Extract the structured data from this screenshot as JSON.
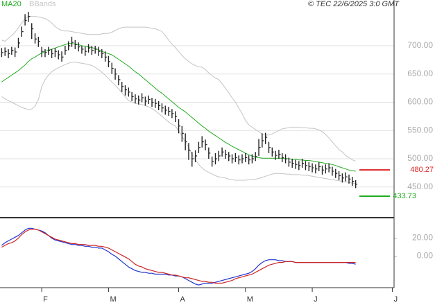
{
  "chart_data": {
    "type": "ohlc",
    "credit": "© TEC 22/6/2025 3:0 GMT",
    "categories": [
      null,
      null,
      null,
      null,
      null,
      null,
      null,
      null,
      null,
      null,
      null,
      null,
      "F",
      null,
      null,
      null,
      null,
      null,
      null,
      null,
      null,
      null,
      null,
      null,
      null,
      null,
      null,
      null,
      null,
      null,
      null,
      null,
      "M",
      null,
      null,
      null,
      null,
      null,
      null,
      null,
      null,
      null,
      null,
      null,
      null,
      null,
      null,
      null,
      null,
      null,
      null,
      null,
      null,
      "A",
      null,
      null,
      null,
      null,
      null,
      null,
      null,
      null,
      null,
      null,
      null,
      null,
      null,
      null,
      null,
      null,
      null,
      null,
      null,
      "M",
      null,
      null,
      null,
      null,
      null,
      null,
      null,
      null,
      null,
      null,
      null,
      null,
      null,
      null,
      null,
      null,
      null,
      null,
      null,
      "J",
      null,
      null,
      null,
      null,
      null,
      null,
      null,
      null,
      null,
      null,
      null,
      null,
      null,
      null,
      null,
      null,
      null,
      null,
      null,
      null,
      null,
      null,
      null,
      "J"
    ],
    "ylim": [
      397,
      781
    ],
    "yticks": [
      {
        "value": 450,
        "label": "450.00"
      },
      {
        "value": 500,
        "label": "500.00"
      },
      {
        "value": 550,
        "label": "550.00"
      },
      {
        "value": 600,
        "label": "600.00"
      },
      {
        "value": 650,
        "label": "650.00"
      },
      {
        "value": 700,
        "label": "700.00"
      }
    ],
    "grid": true,
    "bars": {
      "color": "#222222",
      "high": [
        696,
        697,
        694,
        698,
        697,
        714,
        734,
        756,
        760,
        740,
        722,
        716,
        698,
        694,
        698,
        694,
        696,
        692,
        690,
        700,
        708,
        716,
        710,
        706,
        700,
        698,
        703,
        700,
        700,
        698,
        694,
        690,
        682,
        670,
        660,
        648,
        636,
        630,
        626,
        618,
        614,
        612,
        616,
        610,
        612,
        608,
        606,
        602,
        598,
        594,
        592,
        588,
        584,
        570,
        558,
        545,
        528,
        512,
        515,
        530,
        540,
        534,
        520,
        504,
        510,
        514,
        520,
        516,
        512,
        508,
        510,
        506,
        508,
        510,
        506,
        508,
        512,
        535,
        545,
        546,
        530,
        520,
        514,
        516,
        510,
        508,
        502,
        500,
        498,
        496,
        500,
        496,
        494,
        492,
        490,
        494,
        488,
        490,
        492,
        486,
        482,
        478,
        474,
        476,
        472,
        468,
        462,
        null,
        null,
        null,
        null,
        null,
        null,
        null,
        null,
        null,
        null,
        null
      ],
      "low": [
        680,
        682,
        678,
        684,
        680,
        696,
        716,
        736,
        742,
        712,
        704,
        698,
        680,
        680,
        684,
        678,
        680,
        676,
        672,
        684,
        692,
        698,
        694,
        690,
        686,
        682,
        688,
        684,
        686,
        682,
        678,
        672,
        662,
        650,
        640,
        630,
        618,
        612,
        610,
        602,
        598,
        596,
        600,
        594,
        597,
        592,
        590,
        586,
        582,
        578,
        576,
        572,
        565,
        545,
        530,
        515,
        498,
        486,
        494,
        510,
        520,
        515,
        500,
        486,
        490,
        496,
        504,
        500,
        496,
        492,
        494,
        490,
        492,
        494,
        490,
        492,
        496,
        505,
        520,
        526,
        510,
        504,
        498,
        500,
        494,
        492,
        486,
        484,
        482,
        480,
        484,
        480,
        478,
        476,
        474,
        478,
        472,
        474,
        476,
        470,
        466,
        462,
        458,
        460,
        456,
        452,
        448,
        null,
        null,
        null,
        null,
        null,
        null,
        null,
        null,
        null,
        null,
        null
      ],
      "close": [
        688,
        690,
        686,
        692,
        689,
        705,
        725,
        745,
        752,
        730,
        712,
        708,
        690,
        688,
        692,
        686,
        690,
        684,
        680,
        692,
        700,
        706,
        702,
        698,
        694,
        690,
        696,
        692,
        694,
        690,
        686,
        680,
        672,
        660,
        650,
        640,
        628,
        622,
        618,
        610,
        606,
        604,
        608,
        602,
        605,
        600,
        598,
        594,
        590,
        586,
        584,
        580,
        575,
        558,
        545,
        530,
        515,
        500,
        505,
        520,
        530,
        525,
        510,
        495,
        500,
        505,
        512,
        508,
        505,
        500,
        502,
        498,
        500,
        502,
        498,
        500,
        504,
        520,
        532,
        538,
        520,
        512,
        506,
        508,
        502,
        500,
        494,
        492,
        490,
        488,
        492,
        488,
        486,
        484,
        482,
        486,
        480,
        482,
        484,
        478,
        474,
        470,
        466,
        468,
        464,
        460,
        455,
        null,
        null,
        null,
        null,
        null,
        null,
        null,
        null,
        null,
        null,
        null
      ]
    },
    "ma": {
      "name": "MA20",
      "color": "#22aa22",
      "values": [
        636,
        640,
        644,
        648,
        652,
        656,
        661,
        666,
        672,
        677,
        680,
        684,
        687,
        690,
        692,
        694,
        696,
        698,
        700,
        702,
        704,
        704,
        703,
        702,
        700,
        699,
        698,
        697,
        695,
        693,
        690,
        688,
        686,
        684,
        680,
        676,
        672,
        668,
        664,
        659,
        654,
        650,
        645,
        640,
        635,
        630,
        625,
        620,
        616,
        611,
        606,
        601,
        596,
        591,
        587,
        583,
        578,
        573,
        568,
        563,
        558,
        554,
        549,
        545,
        541,
        537,
        533,
        529,
        526,
        522,
        519,
        516,
        513,
        510,
        507,
        505,
        503,
        502,
        501,
        501,
        501,
        501,
        501,
        501,
        501,
        500,
        500,
        499,
        499,
        498,
        498,
        497,
        497,
        496,
        495,
        494,
        493,
        492,
        491,
        490,
        488,
        486,
        484,
        482,
        480,
        479,
        478,
        null,
        null,
        null,
        null,
        null,
        null,
        null,
        null,
        null,
        null,
        null
      ]
    },
    "bands": {
      "name": "BBands",
      "color": "#c4c4c4",
      "upper": [
        710,
        708,
        713,
        718,
        724,
        732,
        740,
        748,
        752,
        752,
        752,
        751,
        750,
        748,
        745,
        740,
        734,
        730,
        727,
        726,
        726,
        725,
        724,
        723,
        722,
        721,
        720,
        720,
        720,
        720,
        721,
        722,
        722,
        724,
        727,
        730,
        732,
        733,
        733,
        733,
        733,
        733,
        733,
        733,
        732,
        731,
        730,
        728,
        725,
        718,
        710,
        703,
        697,
        690,
        683,
        677,
        672,
        668,
        665,
        663,
        662,
        658,
        652,
        647,
        643,
        640,
        633,
        625,
        617,
        608,
        600,
        590,
        580,
        568,
        560,
        556,
        552,
        548,
        544,
        542,
        542,
        544,
        547,
        550,
        553,
        554,
        555,
        556,
        556,
        556,
        555,
        555,
        554,
        554,
        553,
        551,
        548,
        543,
        537,
        530,
        523,
        516,
        512,
        506,
        502,
        498,
        496,
        null,
        null,
        null,
        null,
        null,
        null,
        null,
        null,
        null,
        null,
        null
      ],
      "lower": [
        610,
        606,
        603,
        600,
        597,
        594,
        591,
        589,
        587,
        588,
        593,
        605,
        628,
        640,
        648,
        654,
        658,
        661,
        664,
        667,
        669,
        671,
        671,
        670,
        669,
        668,
        667,
        665,
        662,
        658,
        653,
        648,
        642,
        636,
        630,
        624,
        617,
        610,
        603,
        600,
        598,
        597,
        596,
        594,
        592,
        589,
        585,
        580,
        575,
        570,
        565,
        561,
        558,
        550,
        540,
        530,
        520,
        508,
        498,
        490,
        484,
        479,
        476,
        473,
        470,
        468,
        467,
        466,
        464,
        463,
        462,
        462,
        462,
        462,
        463,
        463,
        464,
        465,
        467,
        469,
        471,
        473,
        474,
        474,
        474,
        473,
        473,
        472,
        472,
        472,
        471,
        471,
        470,
        469,
        468,
        467,
        466,
        465,
        464,
        463,
        462,
        461,
        460,
        459,
        458,
        457,
        456,
        null,
        null,
        null,
        null,
        null,
        null,
        null,
        null,
        null,
        null,
        null
      ]
    },
    "levels": [
      {
        "value": 480.27,
        "label": "480.27",
        "color": "#dd2222"
      },
      {
        "value": 433.73,
        "label": "433.73",
        "color": "#22aa22"
      }
    ],
    "macd": {
      "ylim": [
        -35,
        42
      ],
      "yticks": [
        {
          "value": 0,
          "label": "0.00"
        },
        {
          "value": 20,
          "label": "20.00"
        }
      ],
      "series": [
        {
          "color": "#2233cc",
          "values": [
            12,
            15,
            17,
            19,
            21,
            23,
            26,
            29,
            31,
            31,
            30,
            29,
            28,
            26,
            23,
            20,
            18,
            17,
            16,
            15,
            14,
            13,
            13,
            12,
            12,
            11,
            11,
            10,
            10,
            9,
            9,
            7,
            5,
            2,
            0,
            -3,
            -6,
            -9,
            -12,
            -14,
            -16,
            -17,
            -18,
            -18,
            -19,
            -19,
            -20,
            -20,
            -20,
            -20,
            -21,
            -21,
            -22,
            -22,
            -23,
            -25,
            -27,
            -29,
            -31,
            -32,
            -31,
            -30,
            -30,
            -30,
            -29,
            -28,
            -27,
            -26,
            -25,
            -24,
            -23,
            -22,
            -21,
            -20,
            -19,
            -17,
            -14,
            -10,
            -7,
            -5,
            -4,
            -4,
            -4,
            -5,
            -5,
            -6,
            -6,
            -6,
            -7,
            -7,
            -7,
            -7,
            -7,
            -7,
            -7,
            -7,
            -7,
            -7,
            -7,
            -7,
            -7,
            -7,
            -7,
            -7,
            -8,
            -8,
            -9,
            null,
            null,
            null,
            null,
            null,
            null,
            null,
            null,
            null,
            null,
            null
          ]
        },
        {
          "color": "#cc2222",
          "values": [
            10,
            12,
            14,
            15,
            17,
            20,
            24,
            27,
            29,
            30,
            30,
            29,
            27,
            25,
            23,
            21,
            19,
            18,
            17,
            16,
            15,
            14,
            14,
            13,
            13,
            13,
            12,
            12,
            12,
            11,
            11,
            10,
            9,
            7,
            5,
            3,
            1,
            -1,
            -3,
            -6,
            -9,
            -11,
            -12,
            -14,
            -15,
            -16,
            -17,
            -18,
            -18,
            -19,
            -20,
            -21,
            -21,
            -22,
            -23,
            -24,
            -24,
            -25,
            -26,
            -27,
            -28,
            -28,
            -29,
            -29,
            -30,
            -30,
            -30,
            -29,
            -28,
            -27,
            -25,
            -24,
            -23,
            -22,
            -21,
            -20,
            -18,
            -16,
            -14,
            -12,
            -10,
            -9,
            -8,
            -7,
            -7,
            -6,
            -6,
            -6,
            -7,
            -7,
            -7,
            -7,
            -7,
            -7,
            -7,
            -7,
            -7,
            -7,
            -7,
            -7,
            -7,
            -7,
            -7,
            -7,
            -7,
            -7,
            -7,
            null,
            null,
            null,
            null,
            null,
            null,
            null,
            null,
            null,
            null,
            null
          ]
        }
      ]
    }
  }
}
